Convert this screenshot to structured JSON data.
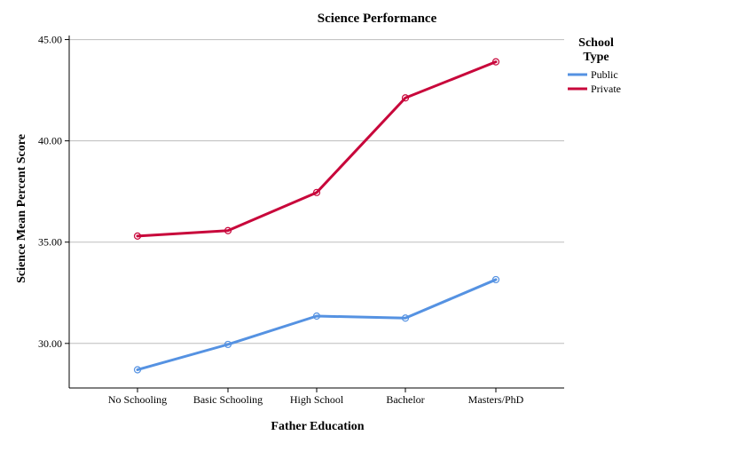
{
  "chart_data": {
    "type": "line",
    "title": "Science Performance",
    "xlabel": "Father Education",
    "ylabel": "Science Mean Percent Score",
    "categories": [
      "No Schooling",
      "Basic Schooling",
      "High School",
      "Bachelor",
      "Masters/PhD"
    ],
    "ylim": [
      27.8,
      45.2
    ],
    "yticks": [
      "30.00",
      "35.00",
      "40.00",
      "45.00"
    ],
    "ytick_values": [
      30,
      35,
      40,
      45
    ],
    "grid": true,
    "legend": {
      "title": "School Type",
      "position": "right"
    },
    "series": [
      {
        "name": "Public",
        "color": "#5592e2",
        "values": [
          28.7,
          29.95,
          31.35,
          31.25,
          33.15
        ]
      },
      {
        "name": "Private",
        "color": "#c8073b",
        "values": [
          35.3,
          35.57,
          37.45,
          42.12,
          43.9
        ]
      }
    ]
  }
}
